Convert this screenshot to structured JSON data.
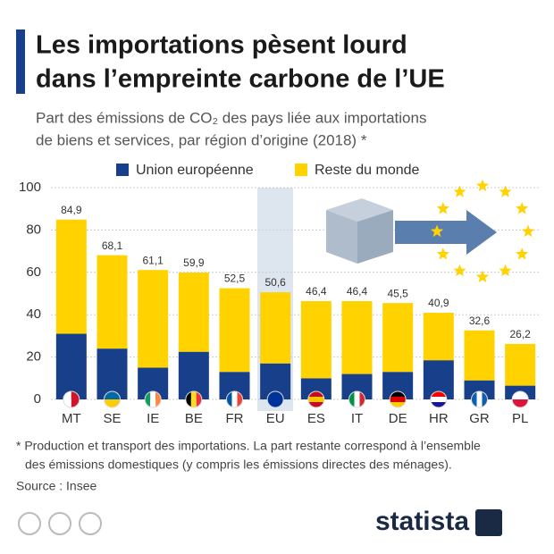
{
  "chart_data": {
    "type": "stacked_bar",
    "title": [
      "Les importations pèsent lourd",
      "dans l’empreinte carbone de l’UE"
    ],
    "subtitle": [
      "Part des émissions de CO₂ des pays liée aux importations",
      "de biens et services, par région d’origine (2018) *"
    ],
    "categories": [
      "MT",
      "SE",
      "IE",
      "BE",
      "FR",
      "EU",
      "ES",
      "IT",
      "DE",
      "HR",
      "GR",
      "PL"
    ],
    "series": [
      {
        "name": "Union européenne",
        "color": "#173f8a",
        "values": [
          31,
          24,
          15,
          22.5,
          13,
          17,
          10,
          12,
          13,
          18.5,
          9,
          6.5
        ]
      },
      {
        "name": "Reste du monde",
        "color": "#ffd200",
        "values": [
          53.9,
          44.1,
          46.1,
          37.4,
          39.5,
          33.6,
          36.4,
          34.4,
          32.5,
          22.4,
          23.6,
          19.7
        ]
      }
    ],
    "totals": {
      "values": [
        84.9,
        68.1,
        61.1,
        59.9,
        52.5,
        50.6,
        46.4,
        46.4,
        45.5,
        40.9,
        32.6,
        26.2
      ],
      "value_labels": [
        "84,9",
        "68,1",
        "61,1",
        "59,9",
        "52,5",
        "50,6",
        "46,4",
        "46,4",
        "45,5",
        "40,9",
        "32,6",
        "26,2"
      ]
    },
    "ylim": [
      0,
      100
    ],
    "yticks": [
      0,
      20,
      40,
      60,
      80,
      100
    ],
    "grid": true,
    "footnote": [
      "* Production et transport des importations. La part restante correspond à l’ensemble",
      "des émissions domestiques (y compris les émissions directes des ménages)."
    ],
    "source": "Source : Insee",
    "brand": "statista"
  }
}
